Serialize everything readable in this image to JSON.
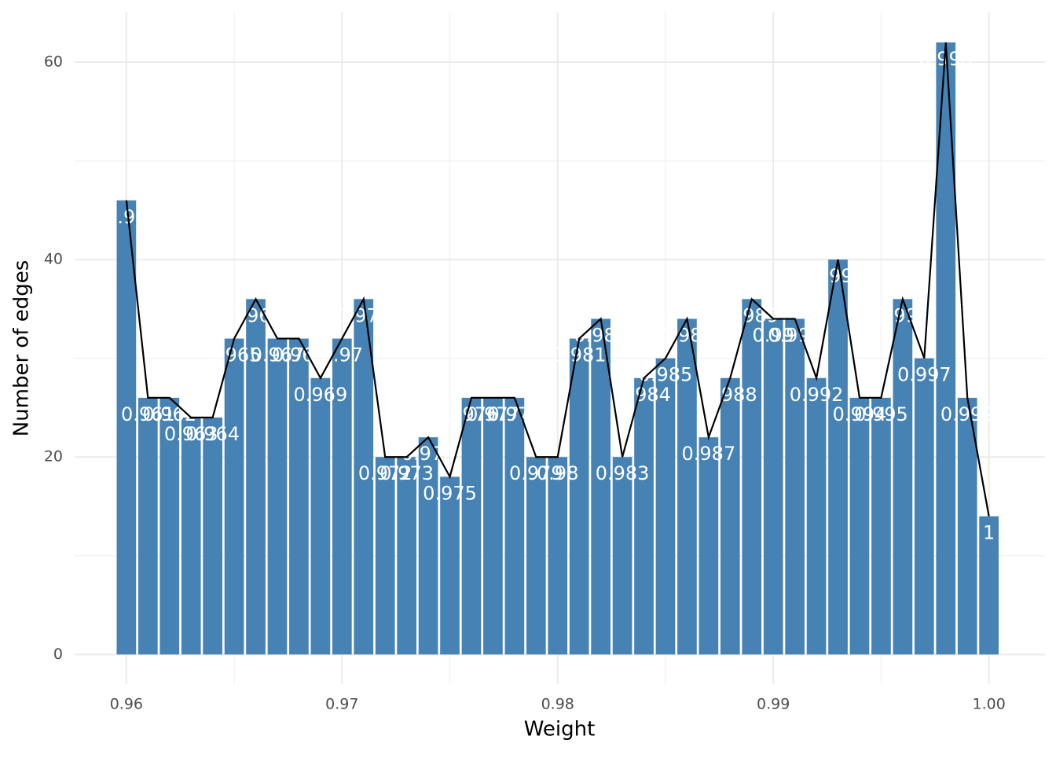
{
  "chart_data": {
    "type": "bar",
    "x_label": "Weight",
    "y_label": "Number of edges",
    "x": [
      0.96,
      0.961,
      0.962,
      0.963,
      0.964,
      0.965,
      0.966,
      0.967,
      0.968,
      0.969,
      0.97,
      0.971,
      0.972,
      0.973,
      0.974,
      0.975,
      0.976,
      0.977,
      0.978,
      0.979,
      0.98,
      0.981,
      0.982,
      0.983,
      0.984,
      0.985,
      0.986,
      0.987,
      0.988,
      0.989,
      0.99,
      0.991,
      0.992,
      0.993,
      0.994,
      0.995,
      0.996,
      0.997,
      0.998,
      0.999,
      1
    ],
    "values": [
      46,
      26,
      26,
      24,
      24,
      32,
      36,
      32,
      32,
      28,
      32,
      36,
      20,
      20,
      22,
      18,
      26,
      26,
      26,
      20,
      20,
      32,
      34,
      20,
      28,
      30,
      34,
      22,
      28,
      36,
      34,
      34,
      28,
      40,
      26,
      26,
      36,
      30,
      62,
      26,
      14
    ],
    "color": "#4682b4",
    "line_color": "#000000",
    "xlim": [
      0.9576,
      1.0026
    ],
    "xticks": [
      0.96,
      0.97,
      0.98,
      0.99,
      {
        "value": 1,
        "label": "1.00"
      }
    ],
    "ylim": [
      -3,
      65.1
    ],
    "yticks": [
      0,
      20,
      40,
      60
    ],
    "grid": true
  }
}
